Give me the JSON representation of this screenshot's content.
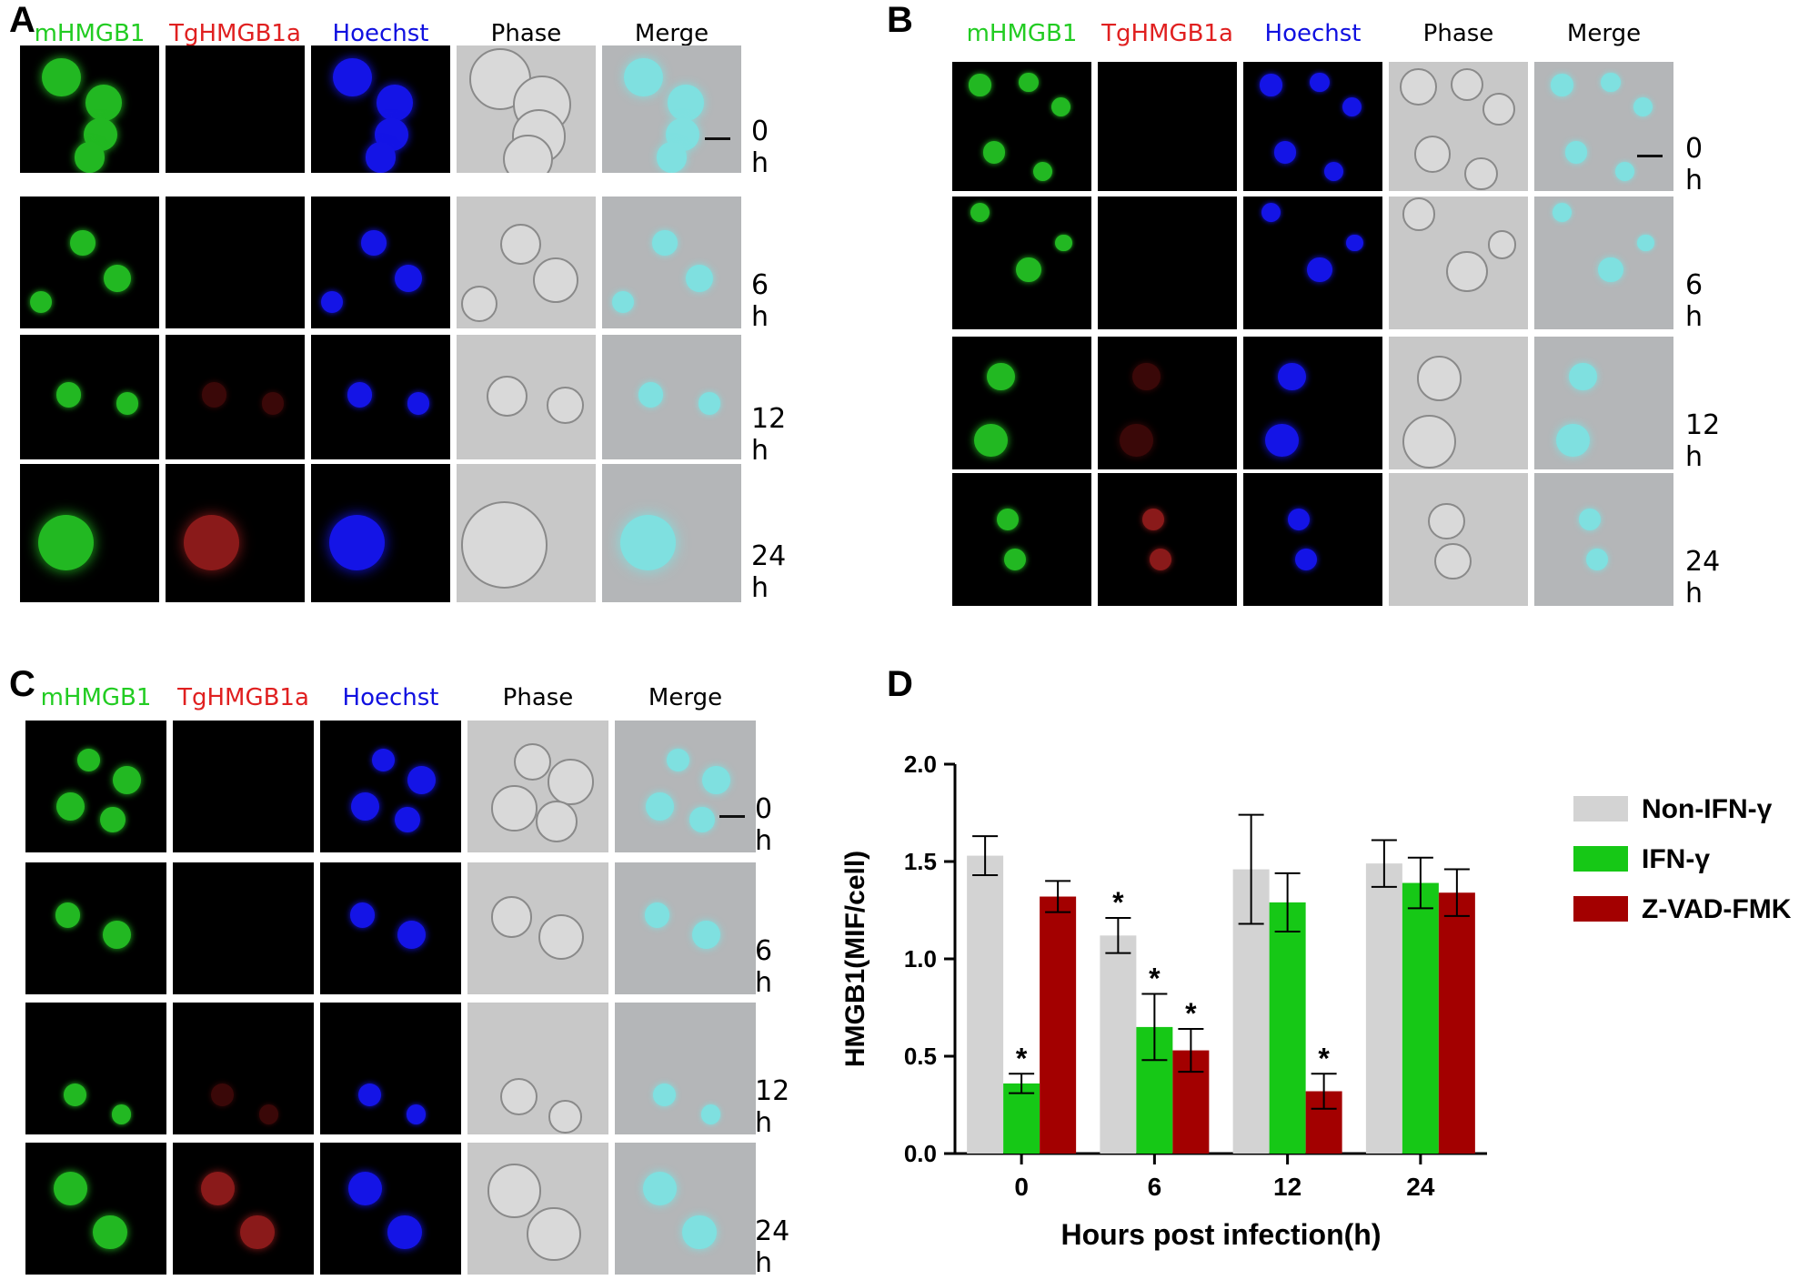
{
  "panels": [
    {
      "letter": "A",
      "columns": [
        "mHMGB1",
        "TgHMGB1a",
        "Hoechst",
        "Phase",
        "Merge"
      ],
      "rows": [
        "0 h",
        "6 h",
        "12 h",
        "24 h"
      ]
    },
    {
      "letter": "B",
      "columns": [
        "mHMGB1",
        "TgHMGB1a",
        "Hoechst",
        "Phase",
        "Merge"
      ],
      "rows": [
        "0 h",
        "6 h",
        "12 h",
        "24 h"
      ]
    },
    {
      "letter": "C",
      "columns": [
        "mHMGB1",
        "TgHMGB1a",
        "Hoechst",
        "Phase",
        "Merge"
      ],
      "rows": [
        "0 h",
        "6 h",
        "12 h",
        "24 h"
      ]
    }
  ],
  "colors": {
    "mHMGB1": "#22cc22",
    "TgHMGB1a": "#e02020",
    "Hoechst": "#1010e0",
    "Phase": "#000000",
    "Merge": "#000000"
  },
  "chart_letter": "D",
  "chart_data": {
    "type": "bar",
    "xlabel": "Hours post infection(h)",
    "ylabel": "HMGB1(MIF/cell)",
    "ylim": [
      0,
      2.0
    ],
    "yticks": [
      "0.0",
      "0.5",
      "1.0",
      "1.5",
      "2.0"
    ],
    "categories": [
      "0",
      "6",
      "12",
      "24"
    ],
    "legend_position": "right",
    "series": [
      {
        "name": "Non-IFN-γ",
        "color": "#d3d3d3",
        "values": [
          1.53,
          1.12,
          1.46,
          1.49
        ],
        "errors": [
          0.1,
          0.09,
          0.28,
          0.12
        ],
        "significant": [
          false,
          true,
          false,
          false
        ]
      },
      {
        "name": "IFN-γ",
        "color": "#16c816",
        "values": [
          0.36,
          0.65,
          1.29,
          1.39
        ],
        "errors": [
          0.05,
          0.17,
          0.15,
          0.13
        ],
        "significant": [
          true,
          true,
          false,
          false
        ]
      },
      {
        "name": "Z-VAD-FMK",
        "color": "#a30000",
        "values": [
          1.32,
          0.53,
          0.32,
          1.34
        ],
        "errors": [
          0.08,
          0.11,
          0.09,
          0.12
        ],
        "significant": [
          false,
          true,
          true,
          false
        ]
      }
    ],
    "significance_mark": "*"
  }
}
